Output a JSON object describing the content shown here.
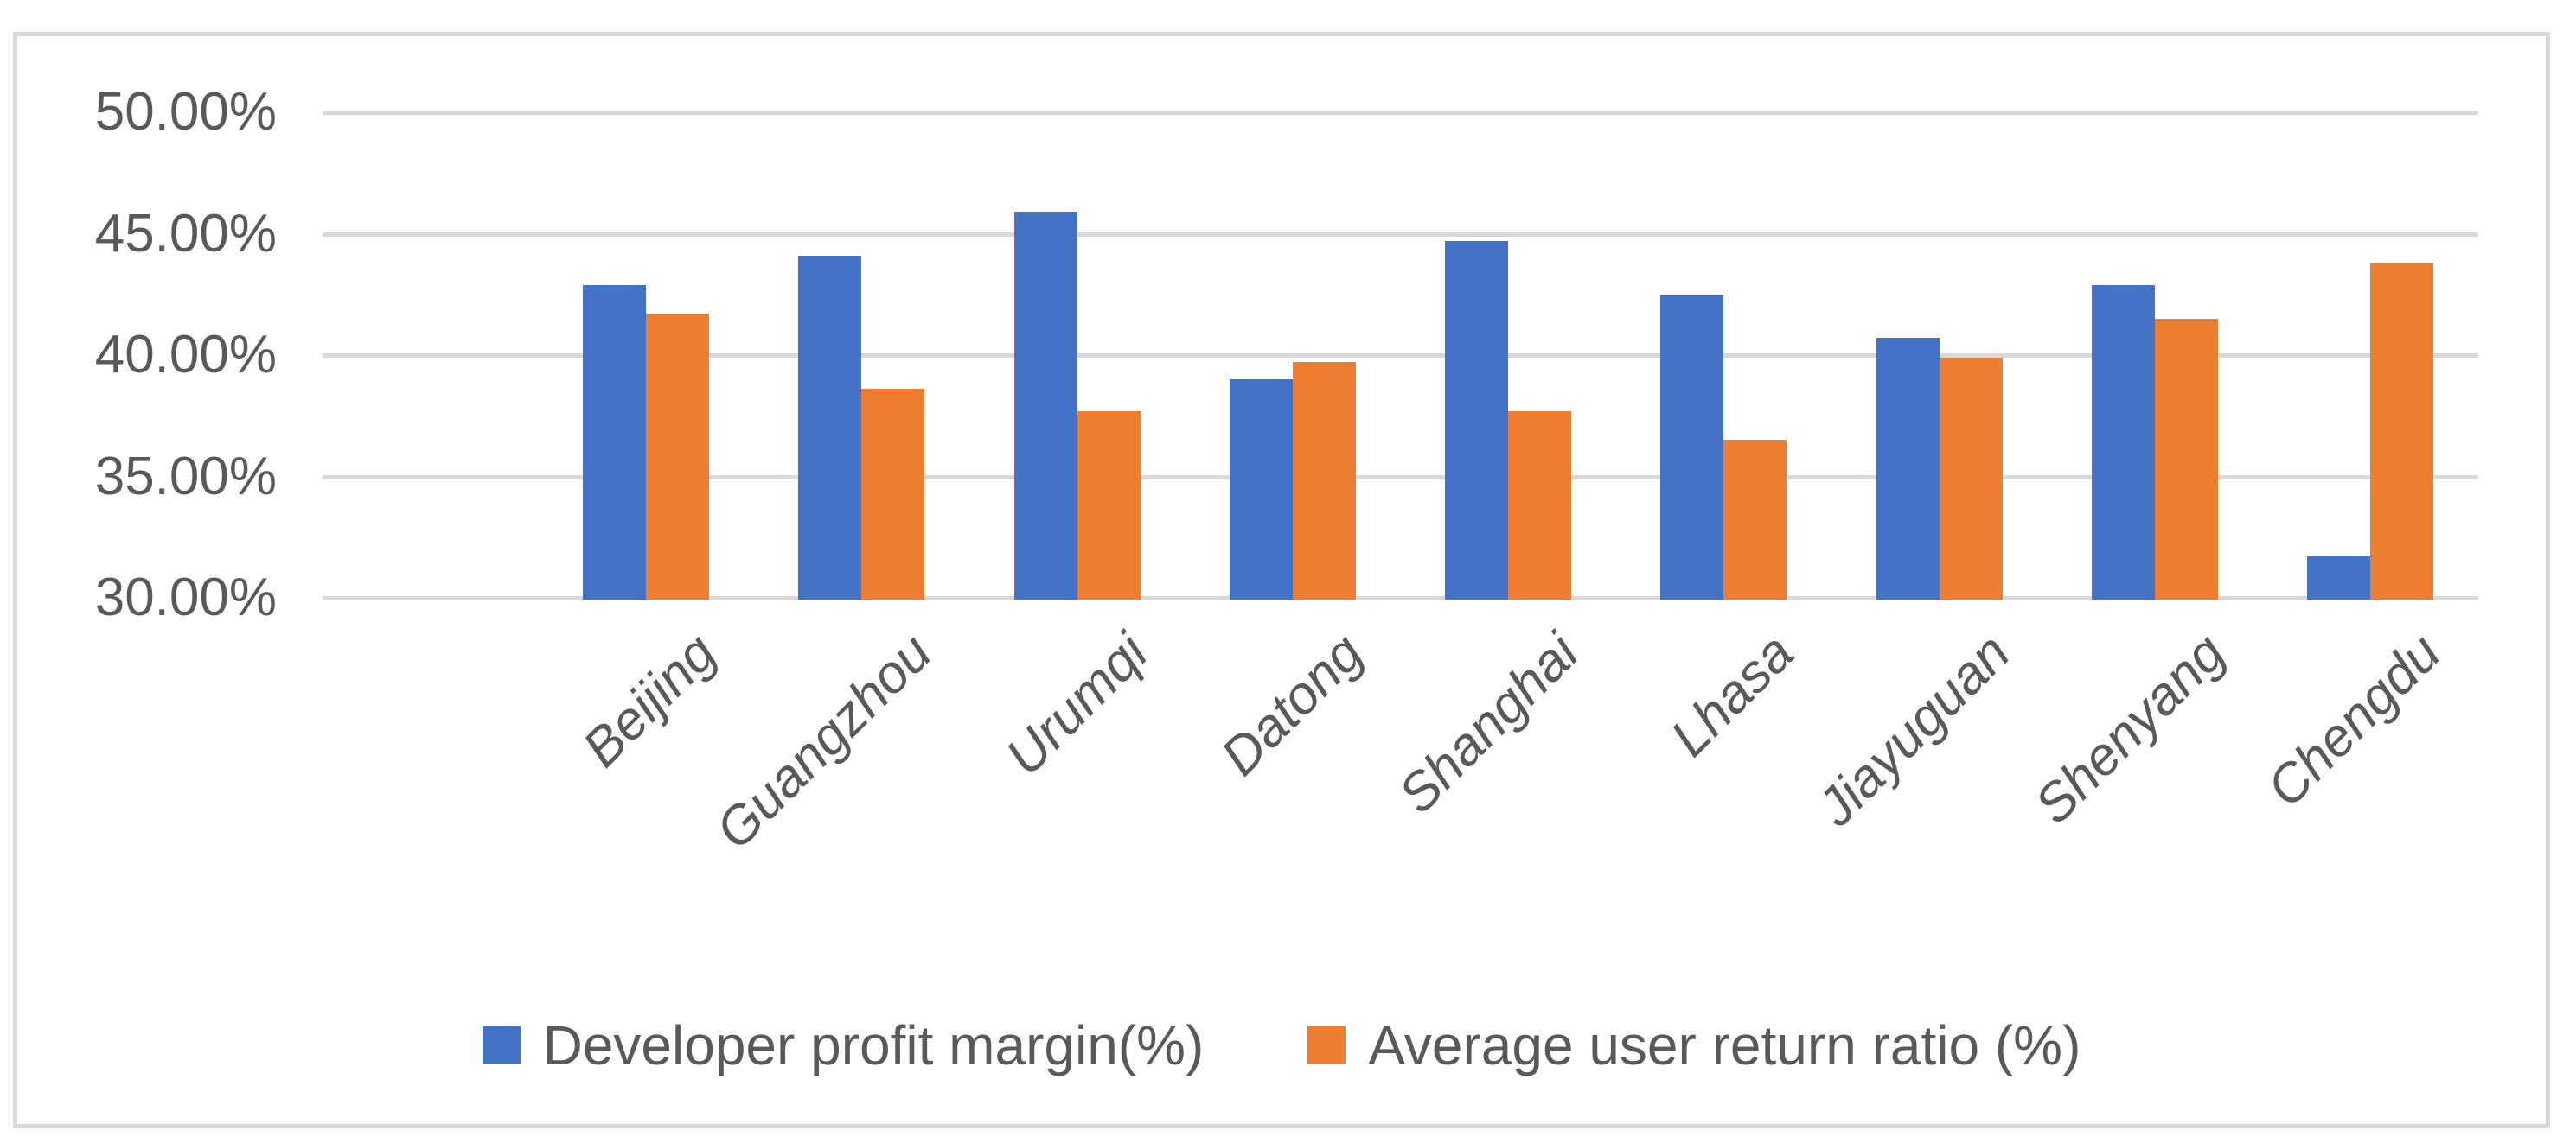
{
  "chart_data": {
    "type": "bar",
    "title": "",
    "categories": [
      "Beijing",
      "Guangzhou",
      "Urumqi",
      "Datong",
      "Shanghai",
      "Lhasa",
      "Jiayuguan",
      "Shenyang",
      "Chengdu"
    ],
    "series": [
      {
        "name": "Developer profit margin(%)",
        "color": "#4472C4",
        "values": [
          42.9,
          44.1,
          45.9,
          39.0,
          44.7,
          42.5,
          40.7,
          42.9,
          31.7
        ]
      },
      {
        "name": "Average user return ratio (%)",
        "color": "#ED7D31",
        "values": [
          41.7,
          38.6,
          37.7,
          39.7,
          37.7,
          36.5,
          39.9,
          41.5,
          43.8
        ]
      }
    ],
    "xlabel": "",
    "ylabel": "",
    "y_axis": {
      "min": 30,
      "max": 50,
      "step": 5,
      "tick_labels_top_to_bottom": [
        "50.00%",
        "45.00%",
        "40.00%",
        "35.00%",
        "30.00%"
      ]
    },
    "grid": true,
    "legend_position": "bottom",
    "category_label_rotation_deg": -45,
    "leading_empty_category_slots": 1
  },
  "colors": {
    "series_blue": "#4472C4",
    "series_orange": "#ED7D31",
    "gridline": "#D9D9D9",
    "frame_border": "#D9D9D9",
    "text": "#595959",
    "background": "#FFFFFF"
  },
  "legend": {
    "item1_label": "Developer profit margin(%)",
    "item2_label": "Average user return ratio (%)"
  }
}
